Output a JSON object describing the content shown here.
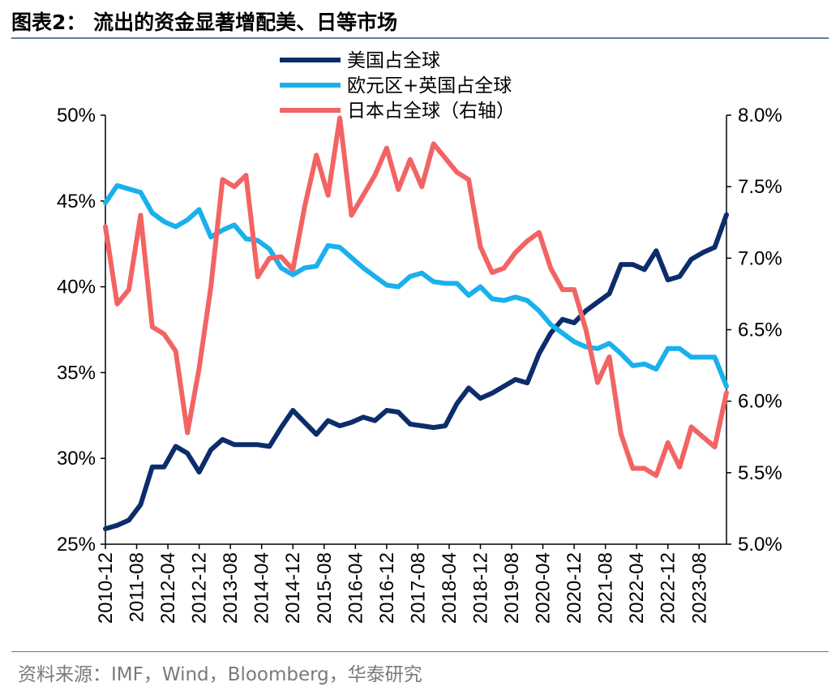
{
  "title": "图表2： 流出的资金显著增配美、日等市场",
  "source": "资料来源：IMF，Wind，Bloomberg，华泰研究",
  "colors": {
    "us": "#0c2d6b",
    "eu": "#1ab0ec",
    "jp": "#f26464",
    "rule": "#5a7da8"
  },
  "chart_data": {
    "type": "line",
    "x_tick_labels": [
      "2010-12",
      "2011-08",
      "2012-04",
      "2012-12",
      "2013-08",
      "2014-04",
      "2014-12",
      "2015-08",
      "2016-04",
      "2016-12",
      "2017-08",
      "2018-04",
      "2018-12",
      "2019-08",
      "2020-04",
      "2020-12",
      "2021-08",
      "2022-04",
      "2022-12",
      "2023-08"
    ],
    "x_start": "2010-12",
    "x_end": "2024-03",
    "frequency": "quarterly",
    "y_left": {
      "lim": [
        25,
        50
      ],
      "tick_labels": [
        "25%",
        "30%",
        "35%",
        "40%",
        "45%",
        "50%"
      ]
    },
    "y_right": {
      "lim": [
        5.0,
        8.0
      ],
      "tick_labels": [
        "5.0%",
        "5.5%",
        "6.0%",
        "6.5%",
        "7.0%",
        "7.5%",
        "8.0%"
      ]
    },
    "series": [
      {
        "name": "美国占全球",
        "axis": "left",
        "values": [
          25.9,
          26.1,
          26.4,
          27.3,
          29.5,
          29.5,
          30.7,
          30.3,
          29.2,
          30.5,
          31.1,
          30.8,
          30.8,
          30.8,
          30.7,
          31.8,
          32.8,
          32.1,
          31.4,
          32.2,
          31.9,
          32.1,
          32.4,
          32.2,
          32.8,
          32.7,
          32.0,
          31.9,
          31.8,
          31.9,
          33.2,
          34.1,
          33.5,
          33.8,
          34.2,
          34.6,
          34.4,
          36.1,
          37.3,
          38.1,
          37.9,
          38.6,
          39.1,
          39.6,
          41.3,
          41.3,
          41.0,
          42.1,
          40.4,
          40.6,
          41.6,
          42.0,
          42.3,
          44.2
        ]
      },
      {
        "name": "欧元区+英国占全球",
        "axis": "left",
        "values": [
          44.9,
          45.9,
          45.7,
          45.5,
          44.3,
          43.8,
          43.5,
          43.9,
          44.5,
          42.9,
          43.3,
          43.6,
          42.8,
          42.7,
          42.2,
          41.1,
          40.7,
          41.1,
          41.2,
          42.4,
          42.3,
          41.7,
          41.1,
          40.6,
          40.1,
          40.0,
          40.6,
          40.8,
          40.3,
          40.2,
          40.2,
          39.5,
          40.0,
          39.3,
          39.2,
          39.4,
          39.2,
          38.6,
          37.8,
          37.3,
          36.8,
          36.5,
          36.4,
          36.7,
          36.1,
          35.4,
          35.5,
          35.2,
          36.4,
          36.4,
          35.9,
          35.9,
          35.9,
          34.2
        ]
      },
      {
        "name": "日本占全球（右轴）",
        "axis": "right",
        "values": [
          7.22,
          6.68,
          6.78,
          7.3,
          6.52,
          6.47,
          6.35,
          5.78,
          6.23,
          6.8,
          7.55,
          7.5,
          7.58,
          6.87,
          7.0,
          7.01,
          6.92,
          7.36,
          7.72,
          7.44,
          7.98,
          7.3,
          7.44,
          7.58,
          7.77,
          7.48,
          7.69,
          7.5,
          7.8,
          7.7,
          7.6,
          7.55,
          7.08,
          6.9,
          6.93,
          7.04,
          7.12,
          7.18,
          6.93,
          6.78,
          6.78,
          6.5,
          6.13,
          6.31,
          5.77,
          5.53,
          5.53,
          5.48,
          5.71,
          5.54,
          5.82,
          5.75,
          5.68,
          6.06
        ]
      }
    ],
    "legend_position": "top-center",
    "grid": false
  }
}
